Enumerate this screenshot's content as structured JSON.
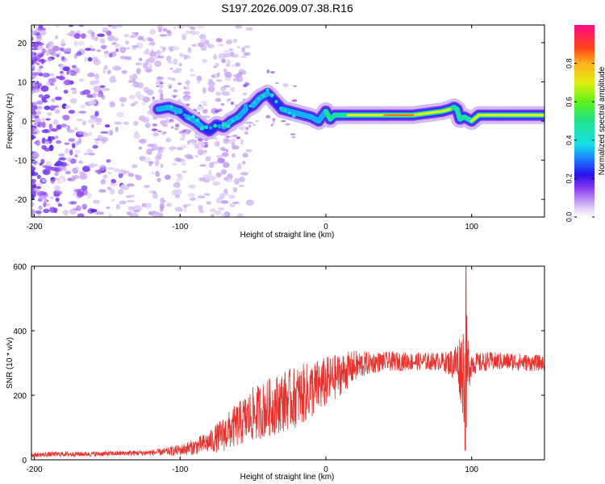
{
  "title": "S197.2026.009.07.38.R16",
  "chart_data": [
    {
      "type": "heatmap",
      "name": "spectrogram",
      "xlabel": "Height of straight line (km)",
      "ylabel": "Frequency (Hz)",
      "xlim": [
        -202,
        150
      ],
      "ylim": [
        -24.5,
        24.5
      ],
      "xticks": [
        -200,
        -100,
        0,
        100
      ],
      "yticks": [
        -20,
        -10,
        0,
        10,
        20
      ],
      "colorbar": {
        "label": "Normalized spectral amplitude",
        "range": [
          0,
          1
        ],
        "ticks": [
          "0.0",
          "0.2",
          "0.4",
          "0.6",
          "0.8"
        ]
      },
      "ridge": {
        "x": [
          -115,
          -108,
          -100,
          -95,
          -90,
          -85,
          -80,
          -75,
          -70,
          -65,
          -60,
          -55,
          -50,
          -45,
          -40,
          -35,
          -30,
          -25,
          -20,
          -15,
          -10,
          -5,
          0,
          3,
          6,
          10,
          15,
          20,
          40,
          60,
          80,
          85,
          88,
          90,
          92,
          95,
          100,
          105,
          120,
          150
        ],
        "freq": [
          3,
          3.5,
          2.5,
          1,
          0,
          -1.5,
          -2.5,
          -1,
          -1.5,
          0,
          1,
          3,
          4,
          6,
          7,
          5,
          3,
          2.5,
          2,
          1.5,
          1,
          0,
          2.5,
          0.5,
          1.5,
          1.5,
          1.5,
          1.5,
          1.5,
          1.5,
          2.5,
          3,
          3.5,
          3,
          0.5,
          1,
          0,
          1.5,
          1.5,
          1.5
        ],
        "amplitude": [
          0.3,
          0.35,
          0.3,
          0.3,
          0.35,
          0.3,
          0.25,
          0.3,
          0.3,
          0.35,
          0.35,
          0.3,
          0.3,
          0.35,
          0.3,
          0.3,
          0.3,
          0.35,
          0.35,
          0.4,
          0.4,
          0.4,
          0.45,
          0.5,
          0.5,
          0.55,
          0.6,
          0.8,
          0.85,
          0.85,
          0.8,
          0.6,
          0.5,
          0.5,
          0.45,
          0.5,
          0.6,
          0.8,
          0.85,
          0.75
        ]
      }
    },
    {
      "type": "line",
      "name": "snr",
      "xlabel": "Height of straight line (km)",
      "ylabel": "SNR (10 * v/v)",
      "xlim": [
        -202,
        150
      ],
      "ylim": [
        0,
        600
      ],
      "xticks": [
        -200,
        -100,
        0,
        100
      ],
      "yticks": [
        0,
        200,
        400,
        600
      ],
      "color": "#e8302c",
      "series": [
        {
          "name": "SNR",
          "x": [
            -202,
            -180,
            -160,
            -140,
            -120,
            -110,
            -100,
            -90,
            -80,
            -70,
            -60,
            -50,
            -40,
            -30,
            -20,
            -10,
            0,
            10,
            20,
            30,
            40,
            50,
            60,
            70,
            80,
            85,
            90,
            93,
            95,
            96,
            97,
            98,
            100,
            105,
            110,
            120,
            130,
            140,
            150
          ],
          "y": [
            15,
            18,
            18,
            20,
            22,
            25,
            30,
            40,
            55,
            80,
            110,
            140,
            160,
            180,
            195,
            215,
            240,
            265,
            290,
            300,
            305,
            305,
            305,
            305,
            305,
            300,
            300,
            290,
            280,
            240,
            270,
            295,
            300,
            300,
            305,
            305,
            305,
            300,
            300
          ],
          "spread": [
            7,
            8,
            8,
            8,
            9,
            12,
            18,
            25,
            35,
            55,
            70,
            85,
            90,
            95,
            95,
            90,
            80,
            65,
            50,
            35,
            30,
            30,
            28,
            28,
            28,
            40,
            70,
            120,
            180,
            260,
            150,
            80,
            40,
            30,
            30,
            28,
            28,
            26,
            24
          ]
        }
      ]
    }
  ]
}
